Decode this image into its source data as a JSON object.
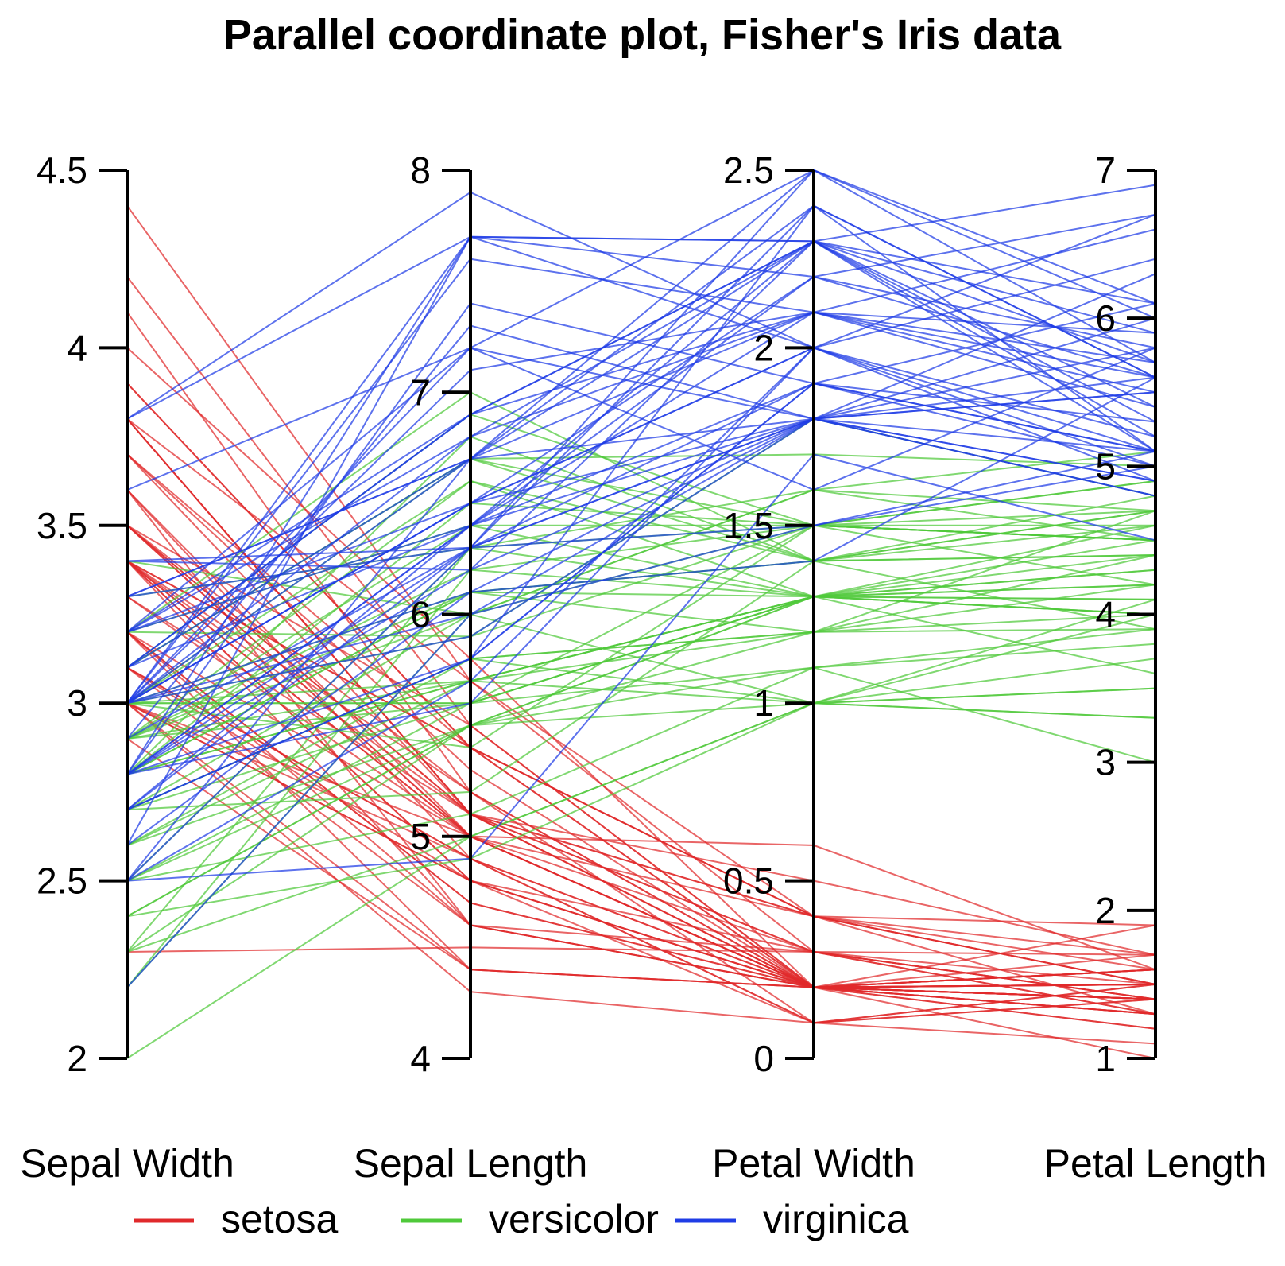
{
  "chart_data": {
    "type": "parallel_coordinates",
    "title": "Parallel coordinate plot, Fisher's Iris data",
    "axes": [
      {
        "name": "Sepal Width",
        "range": [
          2,
          4.5
        ],
        "ticks": [
          {
            "v": 2,
            "label": "2"
          },
          {
            "v": 2.5,
            "label": "2.5"
          },
          {
            "v": 3,
            "label": "3"
          },
          {
            "v": 3.5,
            "label": "3.5"
          },
          {
            "v": 4,
            "label": "4"
          },
          {
            "v": 4.5,
            "label": "4.5"
          }
        ]
      },
      {
        "name": "Sepal Length",
        "range": [
          4,
          8
        ],
        "ticks": [
          {
            "v": 4,
            "label": "4"
          },
          {
            "v": 5,
            "label": "5"
          },
          {
            "v": 6,
            "label": "6"
          },
          {
            "v": 7,
            "label": "7"
          },
          {
            "v": 8,
            "label": "8"
          }
        ]
      },
      {
        "name": "Petal Width",
        "range": [
          0,
          2.5
        ],
        "ticks": [
          {
            "v": 0,
            "label": "0"
          },
          {
            "v": 0.5,
            "label": "0.5"
          },
          {
            "v": 1,
            "label": "1"
          },
          {
            "v": 1.5,
            "label": "1.5"
          },
          {
            "v": 2,
            "label": "2"
          },
          {
            "v": 2.5,
            "label": "2.5"
          }
        ]
      },
      {
        "name": "Petal Length",
        "range": [
          1,
          7
        ],
        "ticks": [
          {
            "v": 1,
            "label": "1"
          },
          {
            "v": 2,
            "label": "2"
          },
          {
            "v": 3,
            "label": "3"
          },
          {
            "v": 4,
            "label": "4"
          },
          {
            "v": 5,
            "label": "5"
          },
          {
            "v": 6,
            "label": "6"
          },
          {
            "v": 7,
            "label": "7"
          }
        ]
      }
    ],
    "legend": {
      "placement": "bottom",
      "entries": [
        {
          "name": "setosa",
          "color": "#e0292b"
        },
        {
          "name": "versicolor",
          "color": "#4fc93a"
        },
        {
          "name": "virginica",
          "color": "#1f3ce6"
        }
      ]
    },
    "series": [
      {
        "name": "setosa",
        "color": "#e0292b",
        "lines": [
          [
            3.5,
            5.1,
            0.2,
            1.4
          ],
          [
            3.0,
            4.9,
            0.2,
            1.4
          ],
          [
            3.2,
            4.7,
            0.2,
            1.3
          ],
          [
            3.1,
            4.6,
            0.2,
            1.5
          ],
          [
            3.6,
            5.0,
            0.2,
            1.4
          ],
          [
            3.9,
            5.4,
            0.4,
            1.7
          ],
          [
            3.4,
            4.6,
            0.3,
            1.4
          ],
          [
            3.4,
            5.0,
            0.2,
            1.5
          ],
          [
            2.9,
            4.4,
            0.2,
            1.4
          ],
          [
            3.1,
            4.9,
            0.1,
            1.5
          ],
          [
            3.7,
            5.4,
            0.2,
            1.5
          ],
          [
            3.4,
            4.8,
            0.2,
            1.6
          ],
          [
            3.0,
            4.8,
            0.1,
            1.4
          ],
          [
            3.0,
            4.3,
            0.1,
            1.1
          ],
          [
            4.0,
            5.8,
            0.2,
            1.2
          ],
          [
            4.4,
            5.7,
            0.4,
            1.5
          ],
          [
            3.9,
            5.4,
            0.4,
            1.3
          ],
          [
            3.5,
            5.1,
            0.3,
            1.4
          ],
          [
            3.8,
            5.7,
            0.3,
            1.7
          ],
          [
            3.8,
            5.1,
            0.3,
            1.5
          ],
          [
            3.4,
            5.4,
            0.2,
            1.7
          ],
          [
            3.7,
            5.1,
            0.4,
            1.5
          ],
          [
            3.6,
            4.6,
            0.2,
            1.0
          ],
          [
            3.3,
            5.1,
            0.5,
            1.7
          ],
          [
            3.4,
            4.8,
            0.2,
            1.9
          ],
          [
            3.0,
            5.0,
            0.2,
            1.6
          ],
          [
            3.4,
            5.0,
            0.4,
            1.6
          ],
          [
            3.5,
            5.2,
            0.2,
            1.5
          ],
          [
            3.4,
            5.2,
            0.2,
            1.4
          ],
          [
            3.2,
            4.7,
            0.2,
            1.6
          ],
          [
            3.1,
            4.8,
            0.2,
            1.6
          ],
          [
            3.4,
            5.4,
            0.4,
            1.5
          ],
          [
            4.1,
            5.2,
            0.1,
            1.5
          ],
          [
            4.2,
            5.5,
            0.2,
            1.4
          ],
          [
            3.1,
            4.9,
            0.2,
            1.5
          ],
          [
            3.2,
            5.0,
            0.2,
            1.2
          ],
          [
            3.5,
            5.5,
            0.2,
            1.3
          ],
          [
            3.6,
            4.9,
            0.1,
            1.4
          ],
          [
            3.0,
            4.4,
            0.2,
            1.3
          ],
          [
            3.4,
            5.1,
            0.2,
            1.5
          ],
          [
            3.5,
            5.0,
            0.3,
            1.3
          ],
          [
            2.3,
            4.5,
            0.3,
            1.3
          ],
          [
            3.2,
            4.4,
            0.2,
            1.3
          ],
          [
            3.5,
            5.0,
            0.6,
            1.6
          ],
          [
            3.8,
            5.1,
            0.4,
            1.9
          ],
          [
            3.0,
            4.8,
            0.3,
            1.4
          ],
          [
            3.8,
            5.1,
            0.2,
            1.6
          ],
          [
            3.2,
            4.6,
            0.2,
            1.4
          ],
          [
            3.7,
            5.3,
            0.2,
            1.5
          ],
          [
            3.3,
            5.0,
            0.2,
            1.4
          ]
        ]
      },
      {
        "name": "versicolor",
        "color": "#4fc93a",
        "lines": [
          [
            3.2,
            7.0,
            1.4,
            4.7
          ],
          [
            3.2,
            6.4,
            1.5,
            4.5
          ],
          [
            3.1,
            6.9,
            1.5,
            4.9
          ],
          [
            2.3,
            5.5,
            1.3,
            4.0
          ],
          [
            2.8,
            6.5,
            1.5,
            4.6
          ],
          [
            2.8,
            5.7,
            1.3,
            4.5
          ],
          [
            3.3,
            6.3,
            1.6,
            4.7
          ],
          [
            2.4,
            4.9,
            1.0,
            3.3
          ],
          [
            2.9,
            6.6,
            1.3,
            4.6
          ],
          [
            2.7,
            5.2,
            1.4,
            3.9
          ],
          [
            2.0,
            5.0,
            1.0,
            3.5
          ],
          [
            3.0,
            5.9,
            1.5,
            4.2
          ],
          [
            2.2,
            6.0,
            1.0,
            4.0
          ],
          [
            2.9,
            6.1,
            1.4,
            4.7
          ],
          [
            2.9,
            5.6,
            1.3,
            3.6
          ],
          [
            3.1,
            6.7,
            1.4,
            4.4
          ],
          [
            3.0,
            5.6,
            1.5,
            4.5
          ],
          [
            2.7,
            5.8,
            1.0,
            4.1
          ],
          [
            2.2,
            6.2,
            1.5,
            4.5
          ],
          [
            2.5,
            5.6,
            1.1,
            3.9
          ],
          [
            3.2,
            5.9,
            1.8,
            4.8
          ],
          [
            2.8,
            6.1,
            1.3,
            4.0
          ],
          [
            2.5,
            6.3,
            1.5,
            4.9
          ],
          [
            2.8,
            6.1,
            1.2,
            4.7
          ],
          [
            2.9,
            6.4,
            1.3,
            4.3
          ],
          [
            3.0,
            6.6,
            1.4,
            4.4
          ],
          [
            2.8,
            6.8,
            1.4,
            4.8
          ],
          [
            3.0,
            6.7,
            1.7,
            5.0
          ],
          [
            2.9,
            6.0,
            1.5,
            4.5
          ],
          [
            2.6,
            5.7,
            1.0,
            3.5
          ],
          [
            2.4,
            5.5,
            1.1,
            3.8
          ],
          [
            2.4,
            5.5,
            1.0,
            3.7
          ],
          [
            2.7,
            5.8,
            1.2,
            3.9
          ],
          [
            2.7,
            6.0,
            1.6,
            5.1
          ],
          [
            3.0,
            5.4,
            1.5,
            4.5
          ],
          [
            3.4,
            6.0,
            1.6,
            4.5
          ],
          [
            3.1,
            6.7,
            1.5,
            4.7
          ],
          [
            2.3,
            6.3,
            1.3,
            4.4
          ],
          [
            3.0,
            5.6,
            1.3,
            4.1
          ],
          [
            2.5,
            5.5,
            1.3,
            4.0
          ],
          [
            2.6,
            5.5,
            1.2,
            4.4
          ],
          [
            3.0,
            6.1,
            1.4,
            4.6
          ],
          [
            2.6,
            5.8,
            1.2,
            4.0
          ],
          [
            2.3,
            5.0,
            1.0,
            3.3
          ],
          [
            2.7,
            5.6,
            1.3,
            4.2
          ],
          [
            3.0,
            5.7,
            1.2,
            4.2
          ],
          [
            2.9,
            5.7,
            1.3,
            4.2
          ],
          [
            2.9,
            6.2,
            1.3,
            4.3
          ],
          [
            2.5,
            5.1,
            1.1,
            3.0
          ],
          [
            2.8,
            5.7,
            1.3,
            4.1
          ]
        ]
      },
      {
        "name": "virginica",
        "color": "#1f3ce6",
        "lines": [
          [
            3.3,
            6.3,
            2.5,
            6.0
          ],
          [
            2.7,
            5.8,
            1.9,
            5.1
          ],
          [
            3.0,
            7.1,
            2.1,
            5.9
          ],
          [
            2.9,
            6.3,
            1.8,
            5.6
          ],
          [
            3.0,
            6.5,
            2.2,
            5.8
          ],
          [
            3.0,
            7.6,
            2.1,
            6.6
          ],
          [
            2.5,
            4.9,
            1.7,
            4.5
          ],
          [
            2.9,
            7.3,
            1.8,
            6.3
          ],
          [
            2.5,
            6.7,
            1.8,
            5.8
          ],
          [
            3.6,
            7.2,
            2.5,
            6.1
          ],
          [
            3.2,
            6.5,
            2.0,
            5.1
          ],
          [
            2.7,
            6.4,
            1.9,
            5.3
          ],
          [
            3.0,
            6.8,
            2.1,
            5.5
          ],
          [
            2.5,
            5.7,
            2.0,
            5.0
          ],
          [
            2.8,
            5.8,
            2.4,
            5.1
          ],
          [
            3.2,
            6.4,
            2.3,
            5.3
          ],
          [
            3.0,
            6.5,
            1.8,
            5.5
          ],
          [
            3.8,
            7.7,
            2.2,
            6.7
          ],
          [
            2.6,
            7.7,
            2.3,
            6.9
          ],
          [
            2.2,
            6.0,
            1.5,
            5.0
          ],
          [
            3.2,
            6.9,
            2.3,
            5.7
          ],
          [
            2.8,
            5.6,
            2.0,
            4.9
          ],
          [
            2.8,
            7.7,
            2.0,
            6.7
          ],
          [
            2.7,
            6.3,
            1.8,
            4.9
          ],
          [
            3.3,
            6.7,
            2.1,
            5.7
          ],
          [
            3.2,
            7.2,
            1.8,
            6.0
          ],
          [
            2.8,
            6.2,
            1.8,
            4.8
          ],
          [
            3.0,
            6.1,
            1.8,
            4.9
          ],
          [
            2.8,
            6.4,
            2.1,
            5.6
          ],
          [
            3.0,
            7.2,
            1.6,
            5.8
          ],
          [
            2.8,
            7.4,
            1.9,
            6.1
          ],
          [
            3.8,
            7.9,
            2.0,
            6.4
          ],
          [
            2.8,
            6.4,
            2.2,
            5.6
          ],
          [
            2.8,
            6.3,
            1.5,
            5.1
          ],
          [
            2.6,
            6.1,
            1.4,
            5.6
          ],
          [
            3.0,
            7.7,
            2.3,
            6.1
          ],
          [
            3.4,
            6.3,
            2.4,
            5.6
          ],
          [
            3.1,
            6.4,
            1.8,
            5.5
          ],
          [
            3.0,
            6.0,
            1.8,
            4.8
          ],
          [
            3.1,
            6.9,
            2.1,
            5.4
          ],
          [
            3.1,
            6.7,
            2.4,
            5.6
          ],
          [
            3.1,
            6.9,
            2.3,
            5.1
          ],
          [
            2.7,
            5.8,
            1.9,
            5.1
          ],
          [
            3.2,
            6.8,
            2.3,
            5.9
          ],
          [
            3.3,
            6.7,
            2.5,
            5.7
          ],
          [
            3.0,
            6.7,
            2.3,
            5.2
          ],
          [
            2.5,
            6.3,
            1.9,
            5.0
          ],
          [
            3.0,
            6.5,
            2.0,
            5.2
          ],
          [
            3.4,
            6.2,
            2.3,
            5.4
          ],
          [
            3.0,
            5.9,
            1.8,
            5.1
          ]
        ]
      }
    ]
  }
}
